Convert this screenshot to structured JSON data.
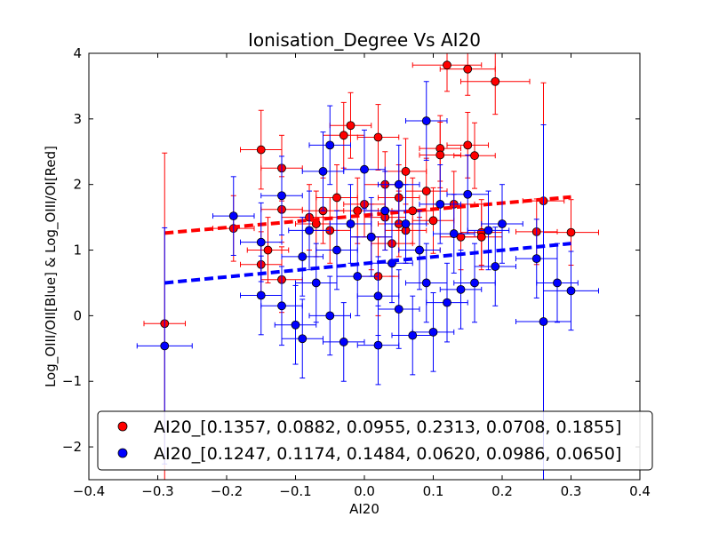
{
  "chart_data": {
    "type": "scatter",
    "title": "Ionisation_Degree Vs AI20",
    "xlabel": "AI20",
    "ylabel": "Log_OIII/OII[Blue] & Log_OIII/OI[Red]",
    "xlim": [
      -0.4,
      0.4
    ],
    "ylim": [
      -2.5,
      4
    ],
    "xticks": [
      -0.4,
      -0.3,
      -0.2,
      -0.1,
      0.0,
      0.1,
      0.2,
      0.3,
      0.4
    ],
    "xtick_labels": [
      "−0.4",
      "−0.3",
      "−0.2",
      "−0.1",
      "0.0",
      "0.1",
      "0.2",
      "0.3",
      "0.4"
    ],
    "yticks": [
      -2,
      -1,
      0,
      1,
      2,
      3,
      4
    ],
    "ytick_labels": [
      "−2",
      "−1",
      "0",
      "1",
      "2",
      "3",
      "4"
    ],
    "grid": false,
    "legend_position": "bottom",
    "series": [
      {
        "name": "AI20_[0.1357, 0.0882, 0.0955, 0.2313, 0.0708, 0.1855]",
        "color": "#ff0000",
        "edge": "#000000",
        "fit": {
          "x": [
            -0.29,
            0.3
          ],
          "y": [
            1.26,
            1.81
          ]
        },
        "points": [
          {
            "x": -0.29,
            "y": -0.12,
            "xerr": 0.03,
            "yerr": 2.6
          },
          {
            "x": -0.15,
            "y": 2.53,
            "xerr": 0.03,
            "yerr": 0.6
          },
          {
            "x": -0.12,
            "y": 2.25,
            "xerr": 0.03,
            "yerr": 0.5
          },
          {
            "x": -0.14,
            "y": 1.0,
            "xerr": 0.03,
            "yerr": 0.5
          },
          {
            "x": -0.15,
            "y": 0.78,
            "xerr": 0.03,
            "yerr": 0.5
          },
          {
            "x": -0.19,
            "y": 1.33,
            "xerr": 0.03,
            "yerr": 0.5
          },
          {
            "x": -0.12,
            "y": 1.62,
            "xerr": 0.03,
            "yerr": 0.5
          },
          {
            "x": -0.12,
            "y": 0.55,
            "xerr": 0.03,
            "yerr": 0.5
          },
          {
            "x": -0.08,
            "y": 1.5,
            "xerr": 0.04,
            "yerr": 0.5
          },
          {
            "x": -0.07,
            "y": 1.4,
            "xerr": 0.03,
            "yerr": 0.5
          },
          {
            "x": -0.06,
            "y": 1.6,
            "xerr": 0.03,
            "yerr": 0.5
          },
          {
            "x": -0.05,
            "y": 1.3,
            "xerr": 0.03,
            "yerr": 0.5
          },
          {
            "x": -0.04,
            "y": 1.8,
            "xerr": 0.03,
            "yerr": 0.5
          },
          {
            "x": -0.03,
            "y": 2.75,
            "xerr": 0.03,
            "yerr": 0.5
          },
          {
            "x": -0.02,
            "y": 2.9,
            "xerr": 0.03,
            "yerr": 0.5
          },
          {
            "x": -0.01,
            "y": 1.6,
            "xerr": 0.03,
            "yerr": 0.5
          },
          {
            "x": 0.0,
            "y": 1.7,
            "xerr": 0.03,
            "yerr": 0.5
          },
          {
            "x": 0.01,
            "y": 1.2,
            "xerr": 0.03,
            "yerr": 0.5
          },
          {
            "x": 0.02,
            "y": 2.72,
            "xerr": 0.03,
            "yerr": 0.5
          },
          {
            "x": 0.02,
            "y": 0.6,
            "xerr": 0.03,
            "yerr": 0.6
          },
          {
            "x": 0.03,
            "y": 1.5,
            "xerr": 0.03,
            "yerr": 0.5
          },
          {
            "x": 0.03,
            "y": 2.0,
            "xerr": 0.03,
            "yerr": 0.5
          },
          {
            "x": 0.04,
            "y": 1.1,
            "xerr": 0.03,
            "yerr": 0.5
          },
          {
            "x": 0.05,
            "y": 1.4,
            "xerr": 0.03,
            "yerr": 0.5
          },
          {
            "x": 0.05,
            "y": 1.8,
            "xerr": 0.03,
            "yerr": 0.5
          },
          {
            "x": 0.06,
            "y": 1.3,
            "xerr": 0.03,
            "yerr": 0.5
          },
          {
            "x": 0.06,
            "y": 2.2,
            "xerr": 0.03,
            "yerr": 0.5
          },
          {
            "x": 0.07,
            "y": 1.6,
            "xerr": 0.03,
            "yerr": 0.5
          },
          {
            "x": 0.08,
            "y": 1.0,
            "xerr": 0.03,
            "yerr": 0.5
          },
          {
            "x": 0.09,
            "y": 1.9,
            "xerr": 0.03,
            "yerr": 0.5
          },
          {
            "x": 0.1,
            "y": 1.45,
            "xerr": 0.03,
            "yerr": 0.5
          },
          {
            "x": 0.11,
            "y": 2.55,
            "xerr": 0.03,
            "yerr": 0.5
          },
          {
            "x": 0.11,
            "y": 2.45,
            "xerr": 0.03,
            "yerr": 0.5
          },
          {
            "x": 0.12,
            "y": 3.82,
            "xerr": 0.05,
            "yerr": 0.4
          },
          {
            "x": 0.13,
            "y": 1.7,
            "xerr": 0.03,
            "yerr": 0.5
          },
          {
            "x": 0.14,
            "y": 1.2,
            "xerr": 0.03,
            "yerr": 0.5
          },
          {
            "x": 0.15,
            "y": 3.76,
            "xerr": 0.04,
            "yerr": 0.4
          },
          {
            "x": 0.15,
            "y": 2.6,
            "xerr": 0.03,
            "yerr": 0.5
          },
          {
            "x": 0.16,
            "y": 2.44,
            "xerr": 0.03,
            "yerr": 0.5
          },
          {
            "x": 0.17,
            "y": 1.27,
            "xerr": 0.03,
            "yerr": 0.5
          },
          {
            "x": 0.17,
            "y": 1.2,
            "xerr": 0.03,
            "yerr": 0.5
          },
          {
            "x": 0.19,
            "y": 3.57,
            "xerr": 0.05,
            "yerr": 0.5
          },
          {
            "x": 0.25,
            "y": 1.28,
            "xerr": 0.03,
            "yerr": 0.5
          },
          {
            "x": 0.26,
            "y": 1.75,
            "xerr": 0.03,
            "yerr": 1.8
          },
          {
            "x": 0.3,
            "y": 1.27,
            "xerr": 0.04,
            "yerr": 0.5
          }
        ]
      },
      {
        "name": "AI20_[0.1247, 0.1174, 0.1484, 0.0620, 0.0986, 0.0650]",
        "color": "#0000ff",
        "edge": "#000000",
        "fit": {
          "x": [
            -0.29,
            0.3
          ],
          "y": [
            0.5,
            1.1
          ]
        },
        "points": [
          {
            "x": -0.29,
            "y": -0.46,
            "xerr": 0.04,
            "yerr": 1.8
          },
          {
            "x": -0.19,
            "y": 1.52,
            "xerr": 0.03,
            "yerr": 0.6
          },
          {
            "x": -0.15,
            "y": 0.31,
            "xerr": 0.03,
            "yerr": 0.6
          },
          {
            "x": -0.15,
            "y": 1.12,
            "xerr": 0.03,
            "yerr": 0.6
          },
          {
            "x": -0.12,
            "y": 1.83,
            "xerr": 0.03,
            "yerr": 0.6
          },
          {
            "x": -0.12,
            "y": 0.15,
            "xerr": 0.03,
            "yerr": 0.6
          },
          {
            "x": -0.1,
            "y": -0.14,
            "xerr": 0.03,
            "yerr": 0.6
          },
          {
            "x": -0.09,
            "y": 0.9,
            "xerr": 0.03,
            "yerr": 0.6
          },
          {
            "x": -0.09,
            "y": -0.35,
            "xerr": 0.03,
            "yerr": 0.6
          },
          {
            "x": -0.08,
            "y": 1.3,
            "xerr": 0.03,
            "yerr": 0.6
          },
          {
            "x": -0.07,
            "y": 0.5,
            "xerr": 0.03,
            "yerr": 0.6
          },
          {
            "x": -0.06,
            "y": 2.2,
            "xerr": 0.03,
            "yerr": 0.6
          },
          {
            "x": -0.05,
            "y": 2.6,
            "xerr": 0.03,
            "yerr": 0.6
          },
          {
            "x": -0.05,
            "y": 0.0,
            "xerr": 0.03,
            "yerr": 0.6
          },
          {
            "x": -0.04,
            "y": 1.0,
            "xerr": 0.03,
            "yerr": 0.6
          },
          {
            "x": -0.03,
            "y": -0.4,
            "xerr": 0.03,
            "yerr": 0.6
          },
          {
            "x": -0.02,
            "y": 1.4,
            "xerr": 0.03,
            "yerr": 0.6
          },
          {
            "x": -0.01,
            "y": 0.6,
            "xerr": 0.03,
            "yerr": 0.6
          },
          {
            "x": 0.0,
            "y": 2.23,
            "xerr": 0.03,
            "yerr": 0.6
          },
          {
            "x": 0.01,
            "y": 1.2,
            "xerr": 0.03,
            "yerr": 0.6
          },
          {
            "x": 0.02,
            "y": 0.3,
            "xerr": 0.03,
            "yerr": 0.6
          },
          {
            "x": 0.02,
            "y": -0.45,
            "xerr": 0.03,
            "yerr": 0.6
          },
          {
            "x": 0.03,
            "y": 1.6,
            "xerr": 0.03,
            "yerr": 0.6
          },
          {
            "x": 0.04,
            "y": 0.8,
            "xerr": 0.03,
            "yerr": 0.6
          },
          {
            "x": 0.05,
            "y": 2.0,
            "xerr": 0.03,
            "yerr": 0.6
          },
          {
            "x": 0.05,
            "y": 0.1,
            "xerr": 0.03,
            "yerr": 0.6
          },
          {
            "x": 0.06,
            "y": 1.4,
            "xerr": 0.03,
            "yerr": 0.6
          },
          {
            "x": 0.07,
            "y": -0.3,
            "xerr": 0.03,
            "yerr": 0.6
          },
          {
            "x": 0.08,
            "y": 1.0,
            "xerr": 0.03,
            "yerr": 0.6
          },
          {
            "x": 0.09,
            "y": 2.97,
            "xerr": 0.03,
            "yerr": 0.6
          },
          {
            "x": 0.09,
            "y": 0.5,
            "xerr": 0.03,
            "yerr": 0.6
          },
          {
            "x": 0.1,
            "y": -0.25,
            "xerr": 0.03,
            "yerr": 0.6
          },
          {
            "x": 0.11,
            "y": 1.7,
            "xerr": 0.03,
            "yerr": 0.6
          },
          {
            "x": 0.12,
            "y": 0.2,
            "xerr": 0.03,
            "yerr": 0.6
          },
          {
            "x": 0.13,
            "y": 1.25,
            "xerr": 0.03,
            "yerr": 0.6
          },
          {
            "x": 0.14,
            "y": 0.4,
            "xerr": 0.03,
            "yerr": 0.6
          },
          {
            "x": 0.15,
            "y": 1.85,
            "xerr": 0.03,
            "yerr": 0.6
          },
          {
            "x": 0.16,
            "y": 0.5,
            "xerr": 0.03,
            "yerr": 0.6
          },
          {
            "x": 0.18,
            "y": 1.3,
            "xerr": 0.03,
            "yerr": 0.6
          },
          {
            "x": 0.19,
            "y": 0.75,
            "xerr": 0.03,
            "yerr": 0.6
          },
          {
            "x": 0.2,
            "y": 1.4,
            "xerr": 0.03,
            "yerr": 0.6
          },
          {
            "x": 0.25,
            "y": 0.87,
            "xerr": 0.03,
            "yerr": 0.6
          },
          {
            "x": 0.26,
            "y": -0.09,
            "xerr": 0.04,
            "yerr": 3.0
          },
          {
            "x": 0.28,
            "y": 0.5,
            "xerr": 0.03,
            "yerr": 0.6
          },
          {
            "x": 0.3,
            "y": 0.38,
            "xerr": 0.04,
            "yerr": 0.6
          }
        ]
      }
    ]
  }
}
